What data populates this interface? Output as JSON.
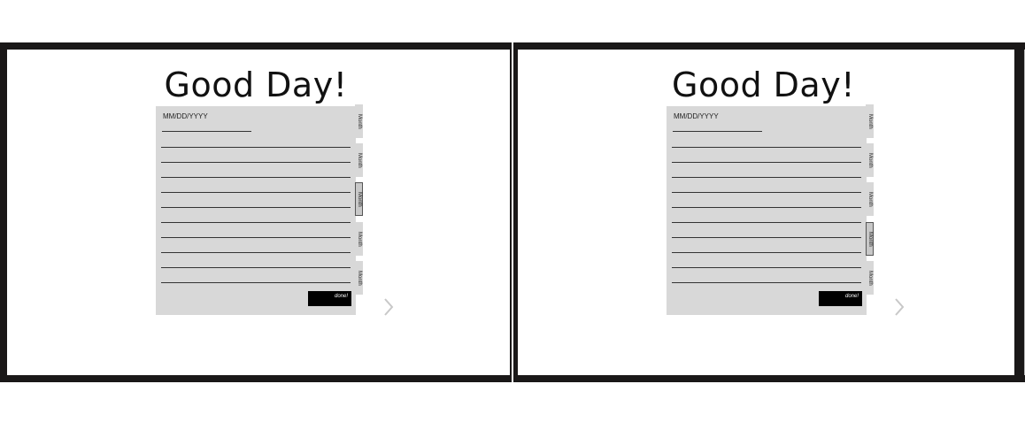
{
  "screens": [
    {
      "title": "Good Day!",
      "date_placeholder": "MM/DD/YYYY",
      "done_label": "done!",
      "tabs": [
        {
          "label": "Month",
          "active": false
        },
        {
          "label": "Month",
          "active": false
        },
        {
          "label": "Month",
          "active": true
        },
        {
          "label": "Month",
          "active": false
        },
        {
          "label": "Month",
          "active": false
        }
      ],
      "next_icon": "chevron-right-icon"
    },
    {
      "title": "Good Day!",
      "date_placeholder": "MM/DD/YYYY",
      "done_label": "done!",
      "tabs": [
        {
          "label": "Month",
          "active": false
        },
        {
          "label": "Month",
          "active": false
        },
        {
          "label": "Month",
          "active": false
        },
        {
          "label": "Month",
          "active": true
        },
        {
          "label": "Month",
          "active": false
        }
      ],
      "next_icon": "chevron-right-icon"
    }
  ],
  "colors": {
    "frame": "#1a1818",
    "journal_background": "#d8d8d8",
    "done_button": "#000000",
    "chevron": "#c8c8c8"
  }
}
